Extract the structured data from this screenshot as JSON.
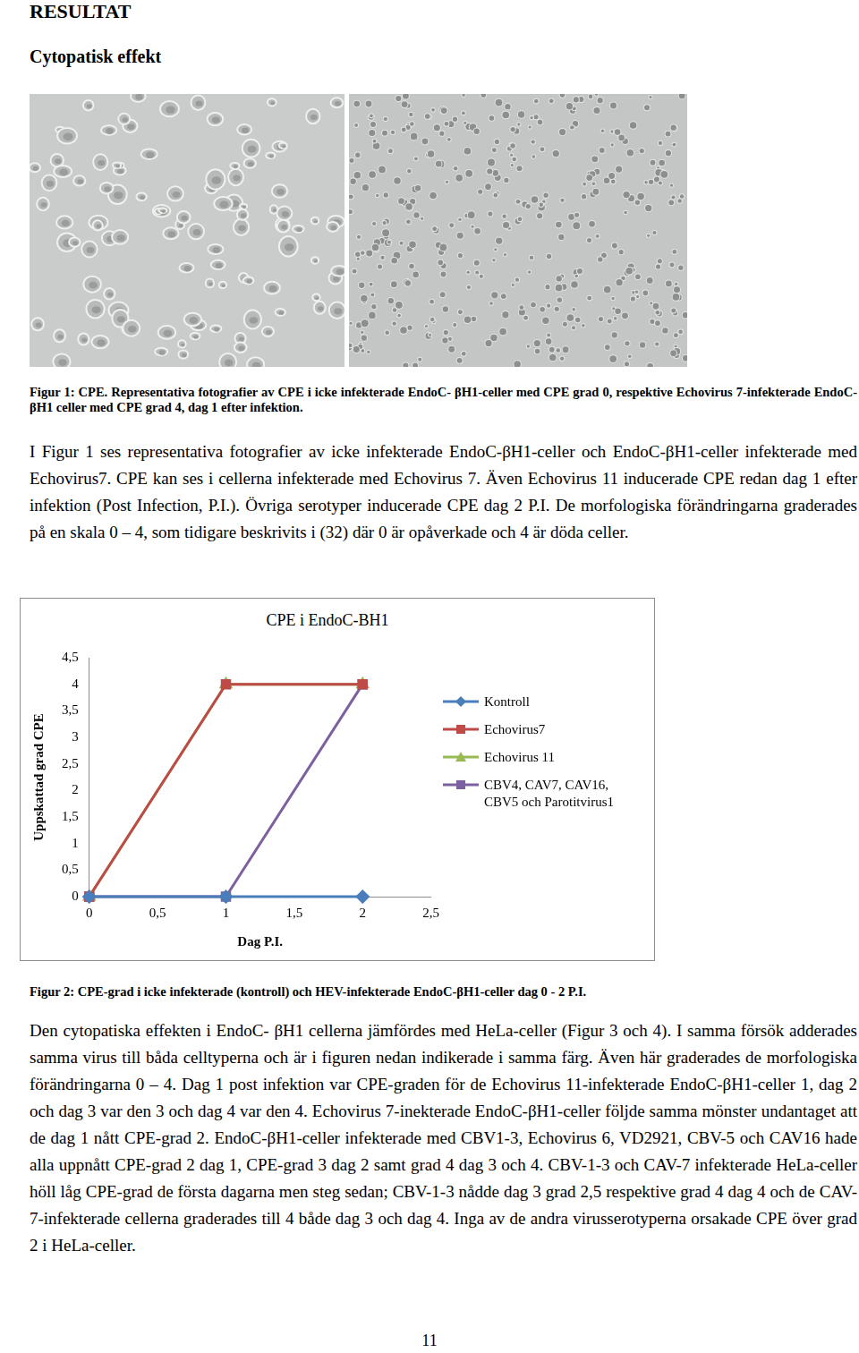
{
  "header": {
    "title": "RESULTAT",
    "subtitle": "Cytopatisk effekt"
  },
  "figure1": {
    "caption": "Figur 1: CPE. Representativa fotografier av CPE i icke infekterade EndoC- βH1-celler med CPE grad 0, respektive Echovirus 7-infekterade EndoC- βH1 celler med CPE grad 4, dag 1 efter infektion."
  },
  "paragraph1": "I Figur 1 ses representativa fotografier av icke infekterade EndoC-βH1-celler och EndoC-βH1-celler infekterade med Echovirus7. CPE kan ses i cellerna infekterade med Echovirus 7. Även Echovirus 11 inducerade CPE redan dag 1 efter infektion (Post Infection, P.I.). Övriga serotyper inducerade CPE dag 2 P.I. De morfologiska förändringarna graderades på en skala 0 – 4, som tidigare beskrivits i (32) där 0 är opåverkade och 4 är döda celler.",
  "chart_data": {
    "type": "line",
    "title": "CPE i EndoC-BH1",
    "x_label": "Dag P.I.",
    "y_label": "Uppskattad grad CPE",
    "x": [
      0,
      1,
      2
    ],
    "series": [
      {
        "name": "Kontroll",
        "color": "#4a7ebb",
        "marker": "diamond",
        "values": [
          0,
          0,
          0
        ]
      },
      {
        "name": "Echovirus7",
        "color": "#be4b48",
        "marker": "square",
        "values": [
          0,
          4,
          4
        ]
      },
      {
        "name": "Echovirus 11",
        "color": "#98b954",
        "marker": "triangle",
        "values": [
          0,
          4,
          4
        ]
      },
      {
        "name": "CBV4, CAV7, CAV16, CBV5 och Parotitvirus1",
        "color": "#7d60a0",
        "marker": "square",
        "values": [
          0,
          0,
          4
        ]
      }
    ],
    "xlim": [
      0,
      2.5
    ],
    "xticks": [
      0,
      {
        "value": 0.5,
        "label": "0,5"
      },
      1,
      {
        "value": 1.5,
        "label": "1,5"
      },
      2,
      {
        "value": 2.5,
        "label": "2,5"
      }
    ],
    "ylim": [
      0,
      4.5
    ],
    "yticks": [
      0,
      {
        "value": 0.5,
        "label": "0,5"
      },
      1,
      {
        "value": 1.5,
        "label": "1,5"
      },
      2,
      {
        "value": 2.5,
        "label": "2,5"
      },
      3,
      {
        "value": 3.5,
        "label": "3,5"
      },
      4,
      {
        "value": 4.5,
        "label": "4,5"
      }
    ],
    "grid": false,
    "legend": "right"
  },
  "figure2": {
    "caption": "Figur 2: CPE-grad i icke infekterade (kontroll) och HEV-infekterade EndoC-βH1-celler dag 0 - 2 P.I."
  },
  "paragraph2": "Den cytopatiska effekten i EndoC- βH1 cellerna jämfördes med HeLa-celler (Figur 3 och 4). I samma försök adderades samma virus till båda celltyperna och är i figuren nedan indikerade i samma färg. Även här graderades de morfologiska förändringarna 0 – 4. Dag 1 post infektion var CPE-graden för de Echovirus 11-infekterade EndoC-βH1-celler 1, dag 2 och dag 3 var den 3 och dag 4 var den 4. Echovirus 7-inekterade EndoC-βH1-celler följde samma mönster undantaget att de dag 1 nått CPE-grad 2. EndoC-βH1-celler infekterade med CBV1-3, Echovirus 6, VD2921, CBV-5 och CAV16 hade alla uppnått CPE-grad 2 dag 1, CPE-grad 3 dag 2 samt grad 4 dag 3 och 4. CBV-1-3 och CAV-7 infekterade HeLa-celler höll låg CPE-grad de första dagarna men steg sedan; CBV-1-3 nådde dag 3 grad 2,5 respektive grad 4 dag 4 och de CAV-7-infekterade cellerna graderades till 4 både dag 3 och dag 4. Inga av de andra virusserotyperna orsakade CPE över grad 2 i HeLa-celler.",
  "page_number": "11"
}
